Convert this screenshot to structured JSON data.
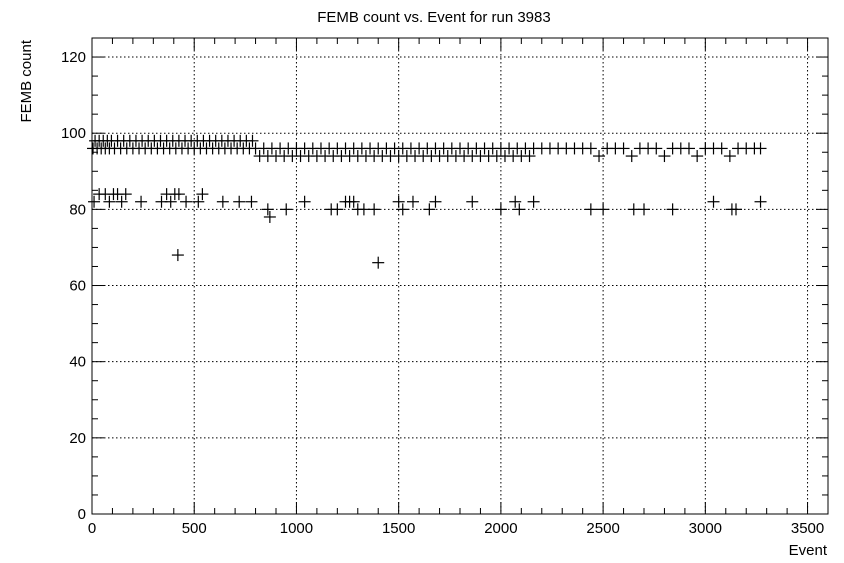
{
  "chart_data": {
    "type": "scatter",
    "title": "FEMB count vs. Event for run 3983",
    "xlabel": "Event",
    "ylabel": "FEMB count",
    "xlim": [
      0,
      3600
    ],
    "ylim": [
      0,
      125
    ],
    "x_ticks": [
      0,
      500,
      1000,
      1500,
      2000,
      2500,
      3000,
      3500
    ],
    "y_ticks": [
      0,
      20,
      40,
      60,
      80,
      100,
      120
    ],
    "x_tick_labels": [
      "0",
      "500",
      "1000",
      "1500",
      "2000",
      "2500",
      "3000",
      "3500"
    ],
    "y_tick_labels": [
      "0",
      "20",
      "40",
      "60",
      "80",
      "100",
      "120"
    ],
    "grid": true,
    "marker": "plus",
    "series": [
      {
        "points": [
          [
            5,
            96
          ],
          [
            15,
            98
          ],
          [
            25,
            96
          ],
          [
            35,
            98
          ],
          [
            45,
            96
          ],
          [
            55,
            98
          ],
          [
            65,
            96
          ],
          [
            75,
            98
          ],
          [
            85,
            96
          ],
          [
            95,
            98
          ],
          [
            110,
            96
          ],
          [
            125,
            98
          ],
          [
            140,
            96
          ],
          [
            155,
            98
          ],
          [
            170,
            96
          ],
          [
            185,
            98
          ],
          [
            200,
            96
          ],
          [
            215,
            98
          ],
          [
            230,
            96
          ],
          [
            245,
            98
          ],
          [
            260,
            96
          ],
          [
            275,
            98
          ],
          [
            290,
            96
          ],
          [
            305,
            98
          ],
          [
            320,
            96
          ],
          [
            335,
            98
          ],
          [
            350,
            96
          ],
          [
            365,
            98
          ],
          [
            380,
            96
          ],
          [
            395,
            98
          ],
          [
            410,
            96
          ],
          [
            425,
            98
          ],
          [
            440,
            96
          ],
          [
            455,
            98
          ],
          [
            470,
            96
          ],
          [
            485,
            98
          ],
          [
            500,
            96
          ],
          [
            515,
            98
          ],
          [
            530,
            96
          ],
          [
            545,
            98
          ],
          [
            560,
            96
          ],
          [
            575,
            98
          ],
          [
            590,
            96
          ],
          [
            605,
            98
          ],
          [
            620,
            96
          ],
          [
            635,
            98
          ],
          [
            650,
            96
          ],
          [
            665,
            98
          ],
          [
            680,
            96
          ],
          [
            695,
            98
          ],
          [
            710,
            96
          ],
          [
            725,
            98
          ],
          [
            740,
            96
          ],
          [
            755,
            98
          ],
          [
            770,
            96
          ],
          [
            785,
            98
          ],
          [
            800,
            96
          ],
          [
            820,
            94
          ],
          [
            840,
            96
          ],
          [
            860,
            94
          ],
          [
            880,
            96
          ],
          [
            900,
            94
          ],
          [
            920,
            96
          ],
          [
            940,
            94
          ],
          [
            960,
            96
          ],
          [
            980,
            94
          ],
          [
            1000,
            96
          ],
          [
            1020,
            94
          ],
          [
            1040,
            96
          ],
          [
            1060,
            94
          ],
          [
            1080,
            96
          ],
          [
            1100,
            94
          ],
          [
            1120,
            96
          ],
          [
            1140,
            94
          ],
          [
            1160,
            96
          ],
          [
            1180,
            94
          ],
          [
            1200,
            96
          ],
          [
            1220,
            94
          ],
          [
            1240,
            96
          ],
          [
            1260,
            94
          ],
          [
            1280,
            96
          ],
          [
            1300,
            94
          ],
          [
            1320,
            96
          ],
          [
            1340,
            94
          ],
          [
            1360,
            96
          ],
          [
            1380,
            94
          ],
          [
            1400,
            96
          ],
          [
            1420,
            94
          ],
          [
            1440,
            96
          ],
          [
            1460,
            94
          ],
          [
            1480,
            96
          ],
          [
            1500,
            94
          ],
          [
            1520,
            96
          ],
          [
            1540,
            94
          ],
          [
            1560,
            96
          ],
          [
            1580,
            94
          ],
          [
            1600,
            96
          ],
          [
            1620,
            94
          ],
          [
            1640,
            96
          ],
          [
            1660,
            94
          ],
          [
            1680,
            96
          ],
          [
            1700,
            94
          ],
          [
            1720,
            96
          ],
          [
            1740,
            94
          ],
          [
            1760,
            96
          ],
          [
            1780,
            94
          ],
          [
            1800,
            96
          ],
          [
            1820,
            94
          ],
          [
            1840,
            96
          ],
          [
            1860,
            94
          ],
          [
            1880,
            96
          ],
          [
            1900,
            94
          ],
          [
            1920,
            96
          ],
          [
            1940,
            94
          ],
          [
            1960,
            96
          ],
          [
            1980,
            94
          ],
          [
            2000,
            96
          ],
          [
            2020,
            94
          ],
          [
            2040,
            96
          ],
          [
            2060,
            94
          ],
          [
            2080,
            96
          ],
          [
            2100,
            94
          ],
          [
            2120,
            96
          ],
          [
            2140,
            94
          ],
          [
            2160,
            96
          ],
          [
            2200,
            96
          ],
          [
            2240,
            96
          ],
          [
            2280,
            96
          ],
          [
            2320,
            96
          ],
          [
            2360,
            96
          ],
          [
            2400,
            96
          ],
          [
            2440,
            96
          ],
          [
            2480,
            94
          ],
          [
            2520,
            96
          ],
          [
            2560,
            96
          ],
          [
            2600,
            96
          ],
          [
            2640,
            94
          ],
          [
            2680,
            96
          ],
          [
            2720,
            96
          ],
          [
            2760,
            96
          ],
          [
            2800,
            94
          ],
          [
            2840,
            96
          ],
          [
            2880,
            96
          ],
          [
            2920,
            96
          ],
          [
            2960,
            94
          ],
          [
            3000,
            96
          ],
          [
            3040,
            96
          ],
          [
            3080,
            96
          ],
          [
            3120,
            94
          ],
          [
            3160,
            96
          ],
          [
            3200,
            96
          ],
          [
            3240,
            96
          ],
          [
            3270,
            96
          ],
          [
            10,
            82
          ],
          [
            35,
            84
          ],
          [
            65,
            84
          ],
          [
            85,
            82
          ],
          [
            105,
            84
          ],
          [
            125,
            84
          ],
          [
            145,
            82
          ],
          [
            165,
            84
          ],
          [
            240,
            82
          ],
          [
            340,
            82
          ],
          [
            365,
            84
          ],
          [
            385,
            82
          ],
          [
            405,
            84
          ],
          [
            425,
            84
          ],
          [
            460,
            82
          ],
          [
            520,
            82
          ],
          [
            540,
            84
          ],
          [
            640,
            82
          ],
          [
            720,
            82
          ],
          [
            780,
            82
          ],
          [
            860,
            80
          ],
          [
            870,
            78
          ],
          [
            950,
            80
          ],
          [
            1040,
            82
          ],
          [
            1170,
            80
          ],
          [
            1200,
            80
          ],
          [
            1240,
            82
          ],
          [
            1260,
            82
          ],
          [
            1280,
            82
          ],
          [
            1300,
            80
          ],
          [
            1330,
            80
          ],
          [
            1380,
            80
          ],
          [
            1500,
            82
          ],
          [
            1520,
            80
          ],
          [
            1570,
            82
          ],
          [
            1650,
            80
          ],
          [
            1680,
            82
          ],
          [
            1860,
            82
          ],
          [
            2000,
            80
          ],
          [
            2070,
            82
          ],
          [
            2090,
            80
          ],
          [
            2160,
            82
          ],
          [
            2440,
            80
          ],
          [
            2500,
            80
          ],
          [
            2650,
            80
          ],
          [
            2700,
            80
          ],
          [
            2840,
            80
          ],
          [
            3040,
            82
          ],
          [
            3130,
            80
          ],
          [
            3150,
            80
          ],
          [
            3270,
            82
          ],
          [
            420,
            68
          ],
          [
            1400,
            66
          ]
        ]
      }
    ]
  }
}
